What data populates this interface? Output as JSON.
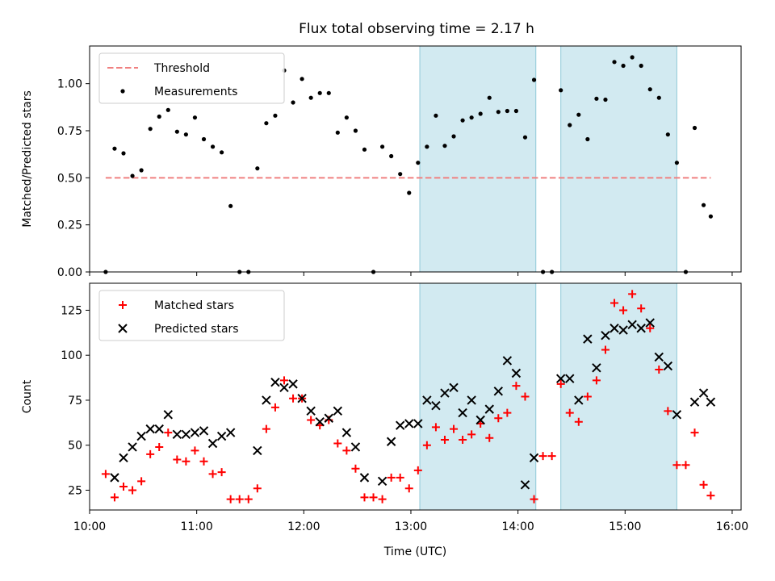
{
  "title": "Flux total observing time = 2.17 h",
  "colors": {
    "threshold": "#f08080",
    "measurement": "#000000",
    "matched": "#ff0000",
    "predicted": "#000000",
    "shade_fill": "#add8e6",
    "shade_edge": "#8fc9d8"
  },
  "chart_data": [
    {
      "type": "scatter",
      "ylabel": "Matched/Predicted stars",
      "xlabel": "",
      "ylim": [
        0,
        1.2
      ],
      "yticks": [
        0.0,
        0.25,
        0.5,
        0.75,
        1.0
      ],
      "ytick_labels": [
        "0.00",
        "0.25",
        "0.50",
        "0.75",
        "1.00"
      ],
      "legend": {
        "placement": "upper-left",
        "entries": [
          "Threshold",
          "Measurements"
        ]
      },
      "threshold": {
        "name": "Threshold",
        "y": 0.5,
        "x_start": "10:09",
        "x_end": "15:48"
      },
      "shaded_intervals": [
        [
          "13:05",
          "14:10"
        ],
        [
          "14:24",
          "15:29"
        ]
      ],
      "series": [
        {
          "name": "Measurements",
          "marker": "dot",
          "x": [
            "10:09",
            "10:14",
            "10:19",
            "10:24",
            "10:29",
            "10:34",
            "10:39",
            "10:44",
            "10:49",
            "10:54",
            "10:59",
            "11:04",
            "11:09",
            "11:14",
            "11:19",
            "11:24",
            "11:29",
            "11:34",
            "11:39",
            "11:44",
            "11:49",
            "11:54",
            "11:59",
            "12:04",
            "12:09",
            "12:14",
            "12:19",
            "12:24",
            "12:29",
            "12:34",
            "12:39",
            "12:44",
            "12:49",
            "12:54",
            "12:59",
            "13:04",
            "13:09",
            "13:14",
            "13:19",
            "13:24",
            "13:29",
            "13:34",
            "13:39",
            "13:44",
            "13:49",
            "13:54",
            "13:59",
            "14:04",
            "14:09",
            "14:14",
            "14:19",
            "14:24",
            "14:29",
            "14:34",
            "14:39",
            "14:44",
            "14:49",
            "14:54",
            "14:59",
            "15:04",
            "15:09",
            "15:14",
            "15:19",
            "15:24",
            "15:29",
            "15:34",
            "15:39",
            "15:44",
            "15:48"
          ],
          "y": [
            0.0,
            0.655,
            0.63,
            0.51,
            0.54,
            0.76,
            0.825,
            0.86,
            0.745,
            0.73,
            0.82,
            0.705,
            0.665,
            0.635,
            0.35,
            0.0,
            0.0,
            0.55,
            0.79,
            0.83,
            1.07,
            0.9,
            1.025,
            0.925,
            0.95,
            0.95,
            0.74,
            0.82,
            0.75,
            0.65,
            0.0,
            0.665,
            0.615,
            0.52,
            0.42,
            0.58,
            0.665,
            0.83,
            0.67,
            0.72,
            0.805,
            0.82,
            0.84,
            0.925,
            0.85,
            0.855,
            0.855,
            0.715,
            1.02,
            0.0,
            0.0,
            0.965,
            0.78,
            0.835,
            0.705,
            0.92,
            0.915,
            1.115,
            1.095,
            1.14,
            1.095,
            0.97,
            0.925,
            0.73,
            0.58,
            0.0,
            0.765,
            0.355,
            0.295
          ]
        }
      ]
    },
    {
      "type": "scatter",
      "ylabel": "Count",
      "xlabel": "Time (UTC)",
      "ylim": [
        14,
        140
      ],
      "yticks": [
        25,
        50,
        75,
        100,
        125
      ],
      "ytick_labels": [
        "25",
        "50",
        "75",
        "100",
        "125"
      ],
      "xlim": [
        "10:00",
        "16:05"
      ],
      "xticks": [
        "10:00",
        "11:00",
        "12:00",
        "13:00",
        "14:00",
        "15:00",
        "16:00"
      ],
      "legend": {
        "placement": "upper-left",
        "entries": [
          "Matched stars",
          "Predicted stars"
        ]
      },
      "shaded_intervals": [
        [
          "13:05",
          "14:10"
        ],
        [
          "14:24",
          "15:29"
        ]
      ],
      "series": [
        {
          "name": "Matched stars",
          "marker": "plus",
          "x": [
            "10:09",
            "10:14",
            "10:19",
            "10:24",
            "10:29",
            "10:34",
            "10:39",
            "10:44",
            "10:49",
            "10:54",
            "10:59",
            "11:04",
            "11:09",
            "11:14",
            "11:19",
            "11:24",
            "11:29",
            "11:34",
            "11:39",
            "11:44",
            "11:49",
            "11:54",
            "11:59",
            "12:04",
            "12:09",
            "12:14",
            "12:19",
            "12:24",
            "12:29",
            "12:34",
            "12:39",
            "12:44",
            "12:49",
            "12:54",
            "12:59",
            "13:04",
            "13:09",
            "13:14",
            "13:19",
            "13:24",
            "13:29",
            "13:34",
            "13:39",
            "13:44",
            "13:49",
            "13:54",
            "13:59",
            "14:04",
            "14:09",
            "14:14",
            "14:19",
            "14:24",
            "14:29",
            "14:34",
            "14:39",
            "14:44",
            "14:49",
            "14:54",
            "14:59",
            "15:04",
            "15:09",
            "15:14",
            "15:19",
            "15:24",
            "15:29",
            "15:34",
            "15:39",
            "15:44",
            "15:48"
          ],
          "y": [
            34,
            21,
            27,
            25,
            30,
            45,
            49,
            57,
            42,
            41,
            47,
            41,
            34,
            35,
            20,
            20,
            20,
            26,
            59,
            71,
            86,
            76,
            76,
            64,
            61,
            64,
            51,
            47,
            37,
            21,
            21,
            20,
            32,
            32,
            26,
            36,
            50,
            60,
            53,
            59,
            53,
            56,
            62,
            54,
            65,
            68,
            83,
            77,
            20,
            44,
            44,
            84,
            68,
            63,
            77,
            86,
            103,
            129,
            125,
            134,
            126,
            115,
            92,
            69,
            39,
            39,
            57,
            28,
            22
          ]
        },
        {
          "name": "Predicted stars",
          "marker": "x",
          "x": [
            "10:14",
            "10:19",
            "10:24",
            "10:29",
            "10:34",
            "10:39",
            "10:44",
            "10:49",
            "10:54",
            "10:59",
            "11:04",
            "11:09",
            "11:14",
            "11:19",
            "11:34",
            "11:39",
            "11:44",
            "11:49",
            "11:54",
            "11:59",
            "12:04",
            "12:09",
            "12:14",
            "12:19",
            "12:24",
            "12:29",
            "12:34",
            "12:44",
            "12:49",
            "12:54",
            "12:59",
            "13:04",
            "13:09",
            "13:14",
            "13:19",
            "13:24",
            "13:29",
            "13:34",
            "13:39",
            "13:44",
            "13:49",
            "13:54",
            "13:59",
            "14:04",
            "14:09",
            "14:24",
            "14:29",
            "14:34",
            "14:39",
            "14:44",
            "14:49",
            "14:54",
            "14:59",
            "15:04",
            "15:09",
            "15:14",
            "15:19",
            "15:24",
            "15:29",
            "15:39",
            "15:44",
            "15:48"
          ],
          "y": [
            32,
            43,
            49,
            55,
            59,
            59,
            67,
            56,
            56,
            57,
            58,
            51,
            55,
            57,
            47,
            75,
            85,
            82,
            84,
            76,
            69,
            63,
            65,
            69,
            57,
            49,
            32,
            30,
            52,
            61,
            62,
            62,
            75,
            72,
            79,
            82,
            68,
            75,
            64,
            70,
            80,
            97,
            90,
            28,
            43,
            87,
            87,
            75,
            109,
            93,
            111,
            115,
            114,
            117,
            115,
            118,
            99,
            94,
            67,
            74,
            79,
            74
          ]
        }
      ]
    }
  ]
}
